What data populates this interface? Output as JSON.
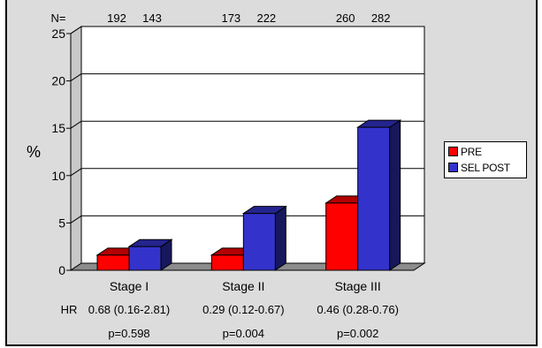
{
  "chart_data": {
    "type": "bar",
    "ylabel": "%",
    "ylim": [
      0,
      25
    ],
    "yticks": [
      "0",
      "5",
      "10",
      "15",
      "20",
      "25"
    ],
    "grid": true,
    "legend_position": "right",
    "categories": [
      "Stage I",
      "Stage II",
      "Stage III"
    ],
    "series": [
      {
        "name": "PRE",
        "color": "#ff0000",
        "values": [
          1.6,
          1.6,
          7.1
        ]
      },
      {
        "name": "SEL POST",
        "color": "#3333cc",
        "values": [
          2.5,
          6.0,
          15.1
        ]
      }
    ],
    "n_label": "N=",
    "n_values": [
      [
        "192",
        "143"
      ],
      [
        "173",
        "222"
      ],
      [
        "260",
        "282"
      ]
    ],
    "hr_label": "HR",
    "hr_values": [
      "0.68 (0.16-2.81)",
      "0.29 (0.12-0.67)",
      "0.46 (0.28-0.76)"
    ],
    "p_values": [
      "p=0.598",
      "p=0.004",
      "p=0.002"
    ]
  }
}
